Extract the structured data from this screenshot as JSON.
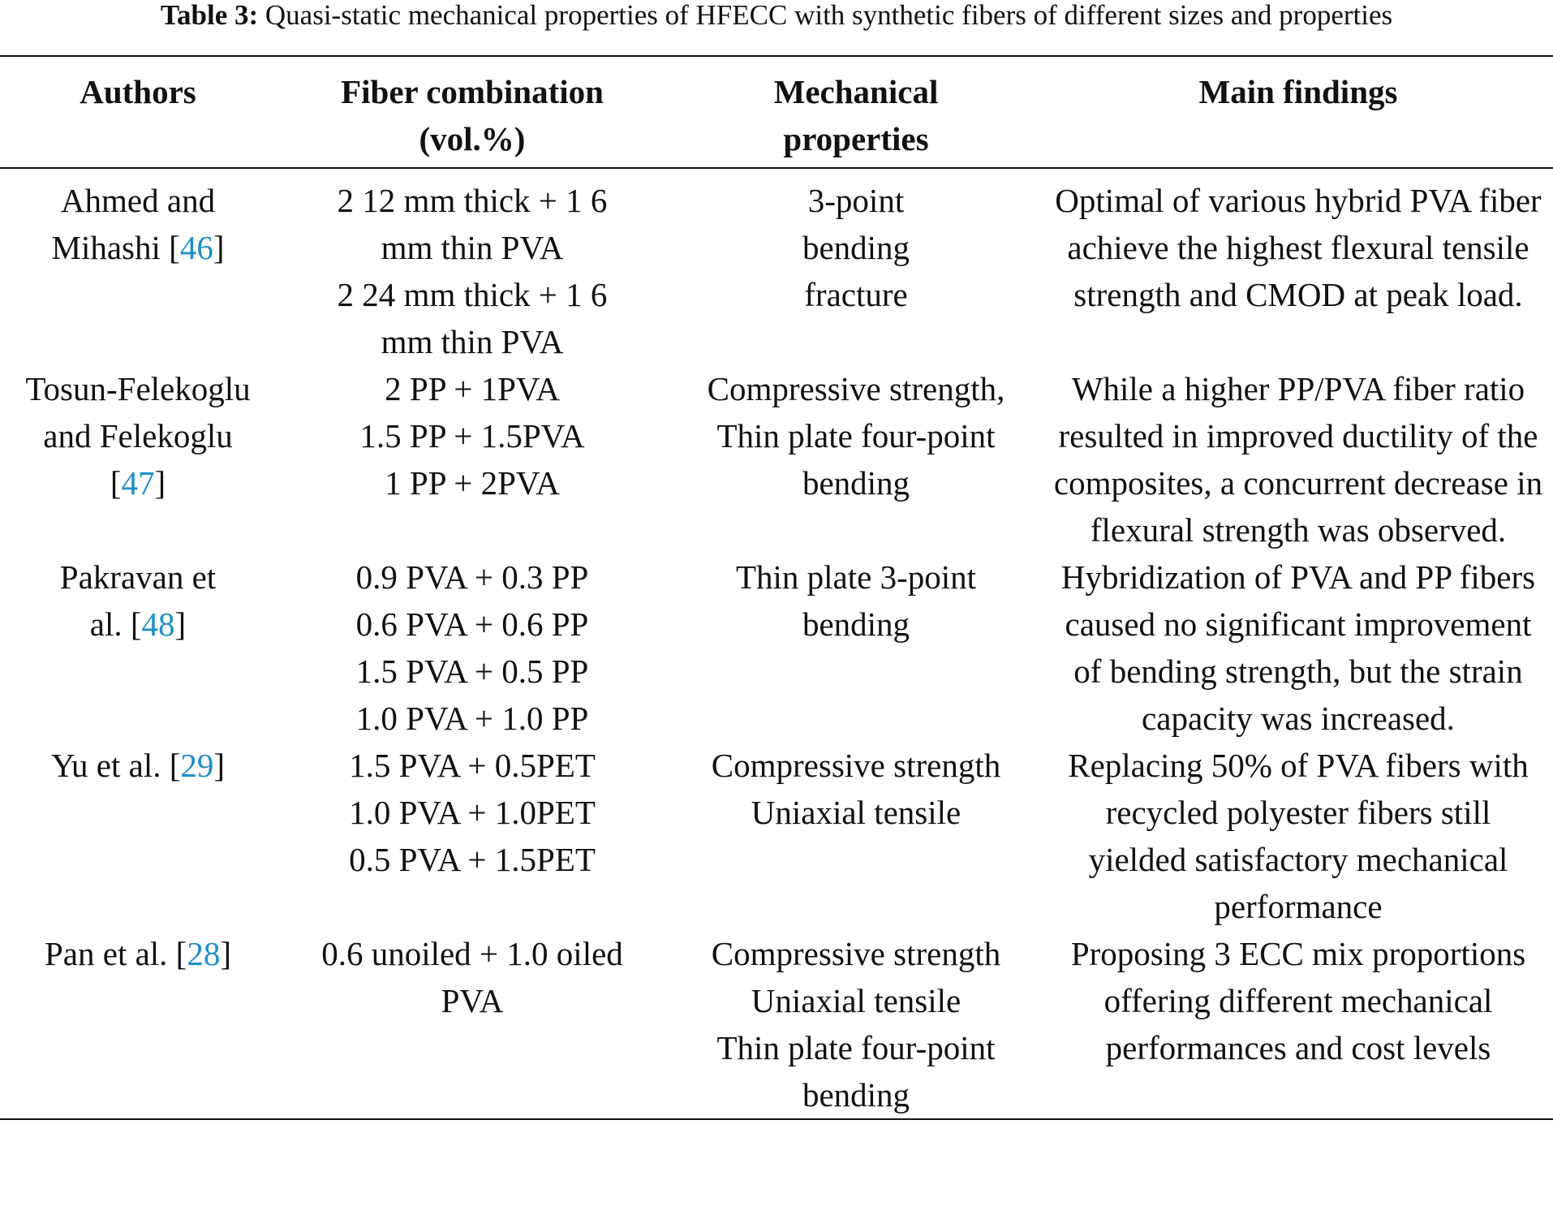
{
  "caption": {
    "label": "Table 3:",
    "text": "Quasi-static mechanical properties of HFECC with synthetic fibers of different sizes and properties"
  },
  "headers": {
    "authors": "Authors",
    "fiber_line1": "Fiber combination",
    "fiber_line2": "(vol.%)",
    "mech_line1": "Mechanical",
    "mech_line2": "properties",
    "findings": "Main findings"
  },
  "rows": [
    {
      "author_pre": "Ahmed and Mihashi [",
      "ref": "46",
      "author_post": "]",
      "fiber": [
        "2 12 mm thick + 1 6 mm thin PVA",
        "2 24 mm thick + 1 6 mm thin PVA"
      ],
      "mech": [
        "3-point bending fracture"
      ],
      "finding": "Optimal of various hybrid PVA fiber achieve the highest flexural tensile strength and CMOD at peak load."
    },
    {
      "author_pre": "Tosun-Felekoglu and Felekoglu [",
      "ref": "47",
      "author_post": "]",
      "fiber": [
        "2 PP + 1PVA",
        "1.5 PP + 1.5PVA",
        "1 PP + 2PVA"
      ],
      "mech": [
        "Compressive strength,",
        "Thin plate four-point bending"
      ],
      "finding": "While a higher PP/PVA fiber ratio resulted in improved ductility of the composites, a concurrent decrease in flexural strength was observed."
    },
    {
      "author_pre": "Pakravan et al. [",
      "ref": "48",
      "author_post": "]",
      "fiber": [
        "0.9 PVA + 0.3 PP",
        "0.6 PVA + 0.6 PP",
        "1.5 PVA + 0.5 PP",
        "1.0 PVA + 1.0 PP"
      ],
      "mech": [
        "Thin plate 3-point bending"
      ],
      "finding": "Hybridization of PVA and PP fibers caused no significant improvement of bending strength, but the strain capacity was increased."
    },
    {
      "author_pre": "Yu et al. [",
      "ref": "29",
      "author_post": "]",
      "fiber": [
        "1.5 PVA + 0.5PET",
        "1.0 PVA + 1.0PET",
        "0.5 PVA + 1.5PET"
      ],
      "mech": [
        "Compressive strength",
        "Uniaxial tensile"
      ],
      "finding": "Replacing 50% of PVA fibers with recycled polyester fibers still yielded satisfactory mechanical performance"
    },
    {
      "author_pre": "Pan et al. [",
      "ref": "28",
      "author_post": "]",
      "fiber": [
        "0.6 unoiled + 1.0 oiled PVA"
      ],
      "mech": [
        "Compressive strength",
        "Uniaxial tensile",
        "Thin plate four-point bending"
      ],
      "finding": "Proposing 3 ECC mix proportions offering different mechanical performances and cost levels"
    }
  ],
  "colors": {
    "text": "#111111",
    "reference_link": "#1e8fc8"
  }
}
